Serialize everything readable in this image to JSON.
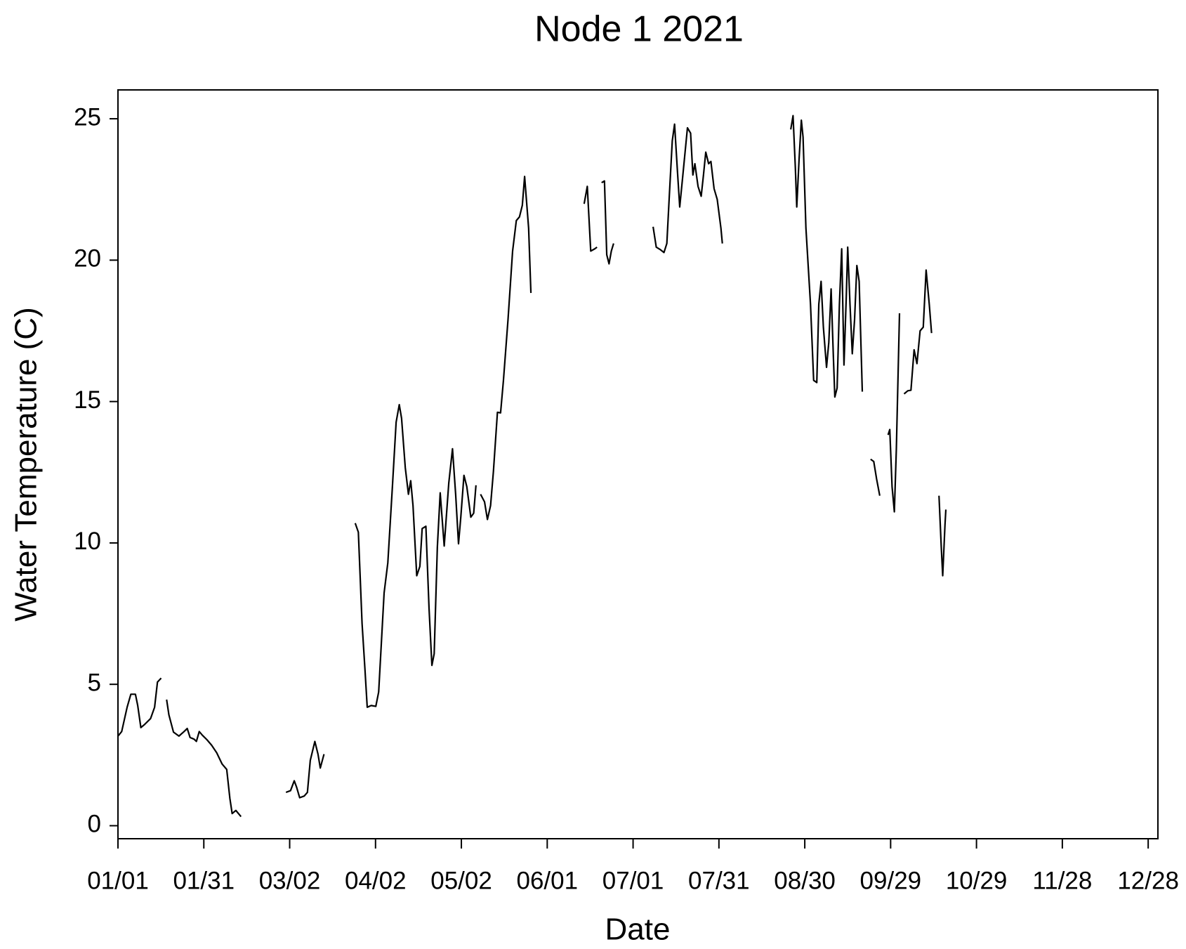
{
  "chart_data": {
    "type": "line",
    "title": "Node 1 2021",
    "x_label": "Date",
    "y_label": "Water Temperature (C)",
    "color": "#000000",
    "xlim": [
      0,
      363.4
    ],
    "ylim": [
      -0.46,
      26.02
    ],
    "xticks": [
      {
        "value": 0,
        "label": "01/01"
      },
      {
        "value": 30,
        "label": "01/31"
      },
      {
        "value": 60,
        "label": "03/02"
      },
      {
        "value": 90,
        "label": "04/02"
      },
      {
        "value": 120,
        "label": "05/02"
      },
      {
        "value": 150,
        "label": "06/01"
      },
      {
        "value": 180,
        "label": "07/01"
      },
      {
        "value": 210,
        "label": "07/31"
      },
      {
        "value": 240,
        "label": "08/30"
      },
      {
        "value": 270,
        "label": "09/29"
      },
      {
        "value": 300,
        "label": "10/29"
      },
      {
        "value": 330,
        "label": "11/28"
      },
      {
        "value": 360,
        "label": "12/28"
      }
    ],
    "yticks": [
      0,
      5,
      10,
      15,
      20,
      25
    ],
    "x": [
      0.0,
      1.3,
      3.2,
      4.5,
      6.1,
      6.9,
      8.0,
      9.3,
      11.4,
      12.8,
      13.8,
      15.1,
      null,
      17.0,
      17.8,
      19.4,
      21.3,
      23.1,
      24.2,
      25.2,
      26.6,
      27.4,
      28.4,
      29.5,
      31.1,
      32.7,
      34.5,
      36.4,
      38.0,
      39.1,
      39.9,
      41.2,
      43.0,
      null,
      58.7,
      60.3,
      61.6,
      62.4,
      63.5,
      65.1,
      66.2,
      67.2,
      68.8,
      69.9,
      70.7,
      72.0,
      null,
      82.9,
      84.0,
      85.3,
      86.3,
      87.1,
      88.5,
      90.1,
      91.1,
      93.0,
      94.3,
      95.9,
      97.2,
      98.3,
      99.1,
      100.4,
      101.5,
      102.3,
      103.1,
      104.4,
      105.5,
      106.3,
      107.6,
      108.7,
      109.7,
      110.5,
      111.6,
      112.6,
      114.0,
      115.6,
      116.9,
      118.0,
      119.0,
      119.8,
      120.9,
      121.9,
      123.3,
      124.3,
      125.1,
      null,
      126.7,
      128.1,
      129.1,
      130.2,
      131.2,
      132.6,
      133.7,
      134.7,
      136.3,
      137.9,
      139.2,
      140.3,
      141.3,
      142.1,
      143.5,
      144.3,
      null,
      162.9,
      164.0,
      165.2,
      166.6,
      167.4,
      null,
      169.0,
      170.0,
      170.8,
      171.6,
      172.4,
      173.2,
      null,
      187.0,
      188.1,
      189.4,
      190.8,
      191.8,
      192.6,
      193.7,
      194.5,
      195.5,
      196.3,
      197.4,
      199.0,
      200.1,
      200.9,
      201.6,
      202.7,
      203.8,
      204.6,
      205.4,
      206.4,
      207.2,
      208.3,
      209.4,
      210.7,
      211.2,
      null,
      235.1,
      235.9,
      236.7,
      237.2,
      238.0,
      238.8,
      239.4,
      240.4,
      242.0,
      243.1,
      244.2,
      244.9,
      245.7,
      246.5,
      247.6,
      248.4,
      249.2,
      250.0,
      250.5,
      251.3,
      252.1,
      252.9,
      253.7,
      254.5,
      255.0,
      255.8,
      256.6,
      257.4,
      258.2,
      259.0,
      260.1,
      null,
      263.0,
      264.1,
      265.1,
      266.2,
      null,
      269.1,
      269.7,
      270.5,
      271.3,
      272.0,
      273.1,
      null,
      274.7,
      276.0,
      277.1,
      278.2,
      279.2,
      280.3,
      281.4,
      282.4,
      283.5,
      284.3,
      null,
      286.9,
      287.7,
      288.2,
      289.0,
      289.3
    ],
    "values": [
      3.17,
      3.33,
      4.19,
      4.65,
      4.65,
      4.25,
      3.47,
      3.58,
      3.79,
      4.19,
      5.08,
      5.22,
      null,
      4.46,
      3.92,
      3.31,
      3.17,
      3.33,
      3.44,
      3.12,
      3.06,
      2.98,
      3.33,
      3.2,
      3.04,
      2.85,
      2.58,
      2.18,
      1.99,
      0.97,
      0.43,
      0.54,
      0.32,
      null,
      1.18,
      1.24,
      1.59,
      1.37,
      0.99,
      1.05,
      1.18,
      2.31,
      2.98,
      2.53,
      2.04,
      2.53,
      null,
      10.7,
      10.38,
      7.15,
      5.54,
      4.19,
      4.25,
      4.22,
      4.73,
      8.23,
      9.3,
      11.99,
      14.27,
      14.89,
      14.41,
      12.66,
      11.72,
      12.2,
      11.32,
      8.84,
      9.17,
      10.51,
      10.59,
      7.69,
      5.67,
      6.08,
      9.84,
      11.77,
      9.89,
      12.12,
      13.33,
      11.72,
      9.97,
      10.91,
      12.39,
      11.99,
      10.91,
      11.05,
      12.04,
      null,
      11.72,
      11.45,
      10.83,
      11.32,
      12.53,
      14.62,
      14.6,
      15.75,
      17.9,
      20.32,
      21.4,
      21.53,
      21.94,
      22.96,
      21.13,
      18.84,
      null,
      21.99,
      22.61,
      20.32,
      20.4,
      20.46,
      null,
      22.74,
      22.8,
      20.19,
      19.87,
      20.32,
      20.59,
      null,
      21.18,
      20.46,
      20.38,
      20.27,
      20.59,
      22.15,
      24.22,
      24.81,
      23.15,
      21.88,
      23.01,
      24.68,
      24.49,
      23.01,
      23.41,
      22.61,
      22.26,
      23.01,
      23.82,
      23.41,
      23.49,
      22.53,
      22.15,
      21.13,
      20.59,
      null,
      24.62,
      25.11,
      23.28,
      21.88,
      23.55,
      24.95,
      24.35,
      21.13,
      18.44,
      15.75,
      15.67,
      18.44,
      19.25,
      17.63,
      16.21,
      17.1,
      18.98,
      16.56,
      15.16,
      15.48,
      18.44,
      20.4,
      16.29,
      18.71,
      20.46,
      18.44,
      16.69,
      17.9,
      19.81,
      19.25,
      15.35,
      null,
      12.96,
      12.88,
      12.26,
      11.67,
      null,
      13.82,
      14.01,
      11.99,
      11.1,
      13.33,
      18.12,
      null,
      15.27,
      15.38,
      15.4,
      16.83,
      16.34,
      17.5,
      17.63,
      19.65,
      18.44,
      17.42,
      null,
      11.67,
      9.84,
      8.84,
      10.65,
      11.18
    ]
  }
}
